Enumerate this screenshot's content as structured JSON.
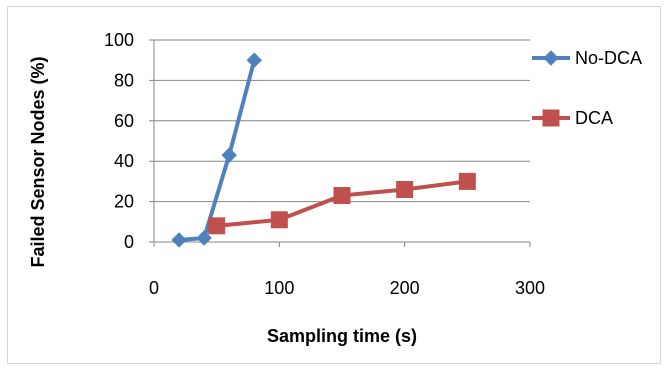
{
  "chart_data": {
    "type": "line",
    "xlabel": "Sampling time (s)",
    "ylabel": "Failed Sensor Nodes (%)",
    "xlim": [
      0,
      300
    ],
    "ylim": [
      0,
      100
    ],
    "xticks": [
      "0",
      "100",
      "200",
      "300"
    ],
    "yticks": [
      "0",
      "20",
      "40",
      "60",
      "80",
      "100"
    ],
    "grid": "horizontal",
    "legend": "right",
    "series": [
      {
        "name": "No-DCA",
        "color": "#4F81BD",
        "marker": "diamond",
        "x": [
          20,
          40,
          60,
          80
        ],
        "y": [
          1,
          2,
          43,
          90
        ]
      },
      {
        "name": "DCA",
        "color": "#C0504D",
        "marker": "square",
        "x": [
          50,
          100,
          150,
          200,
          250
        ],
        "y": [
          8,
          11,
          23,
          26,
          30
        ]
      }
    ]
  }
}
